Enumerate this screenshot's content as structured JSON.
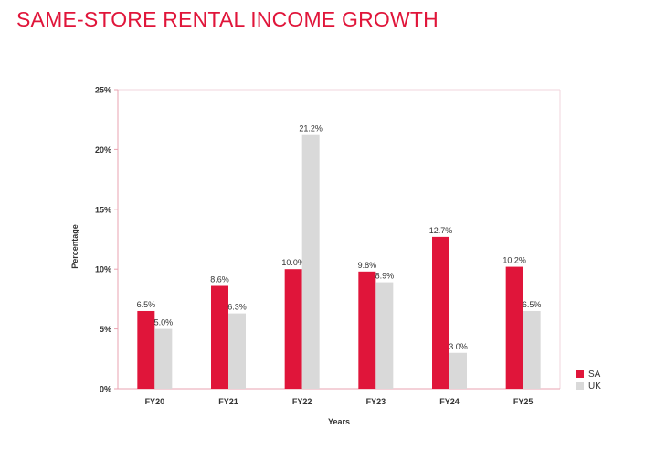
{
  "title": "SAME-STORE RENTAL INCOME GROWTH",
  "chart_data": {
    "type": "bar",
    "categories": [
      "FY20",
      "FY21",
      "FY22",
      "FY23",
      "FY24",
      "FY25"
    ],
    "series": [
      {
        "name": "SA",
        "color": "#e0153a",
        "values": [
          6.5,
          8.6,
          10.0,
          9.8,
          12.7,
          10.2
        ],
        "labels": [
          "6.5%",
          "8.6%",
          "10.0%",
          "9.8%",
          "12.7%",
          "10.2%"
        ]
      },
      {
        "name": "UK",
        "color": "#d9d9d9",
        "values": [
          5.0,
          6.3,
          21.2,
          8.9,
          3.0,
          6.5
        ],
        "labels": [
          "5.0%",
          "6.3%",
          "21.2%",
          "8.9%",
          "3.0%",
          "6.5%"
        ]
      }
    ],
    "xlabel": "Years",
    "ylabel": "Percentage",
    "ylim": [
      0,
      25
    ],
    "yticks": [
      0,
      5,
      10,
      15,
      20,
      25
    ],
    "ytick_labels": [
      "0%",
      "5%",
      "10%",
      "15%",
      "20%",
      "25%"
    ],
    "grid": false,
    "legend_position": "bottom-right"
  }
}
